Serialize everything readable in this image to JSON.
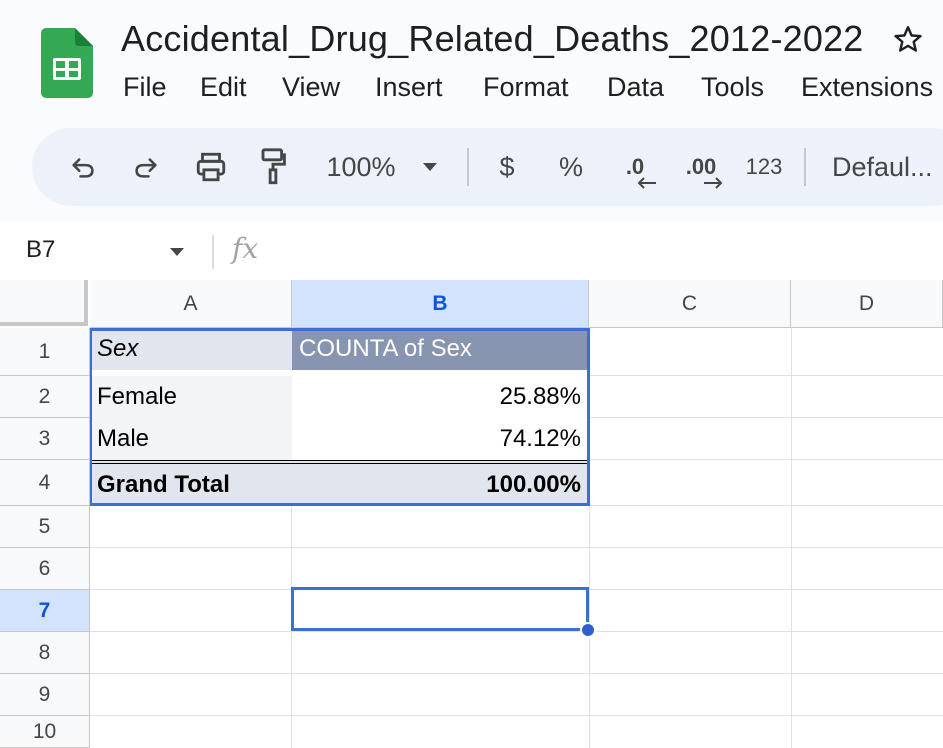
{
  "document": {
    "title": "Accidental_Drug_Related_Deaths_2012-2022"
  },
  "menu": [
    "File",
    "Edit",
    "View",
    "Insert",
    "Format",
    "Data",
    "Tools",
    "Extensions"
  ],
  "toolbar": {
    "zoom": "100%",
    "currency": "$",
    "percent": "%",
    "decrease_decimal": ".0",
    "increase_decimal": ".00",
    "number_format": "123",
    "font": "Defaul..."
  },
  "formula_bar": {
    "name_box": "B7",
    "fx": "fx",
    "formula": ""
  },
  "columns": [
    "A",
    "B",
    "C",
    "D"
  ],
  "rows": [
    "1",
    "2",
    "3",
    "4",
    "5",
    "6",
    "7",
    "8",
    "9",
    "10"
  ],
  "selected": {
    "column": "B",
    "row": "7"
  },
  "pivot": {
    "row_header": "Sex",
    "value_header": "COUNTA of Sex",
    "rows": [
      {
        "label": "Female",
        "value": "25.88%"
      },
      {
        "label": "Male",
        "value": "74.12%"
      }
    ],
    "total": {
      "label": "Grand Total",
      "value": "100.00%"
    }
  },
  "colors": {
    "accent": "#0b57d0",
    "selection_border": "#3b6fd4",
    "pivot_header_bg": "#8795b1",
    "pivot_label_bg": "#e1e5ed"
  },
  "icons": [
    "sheets-logo-icon",
    "star-icon",
    "undo-icon",
    "redo-icon",
    "print-icon",
    "paint-format-icon",
    "chevron-down-icon"
  ]
}
